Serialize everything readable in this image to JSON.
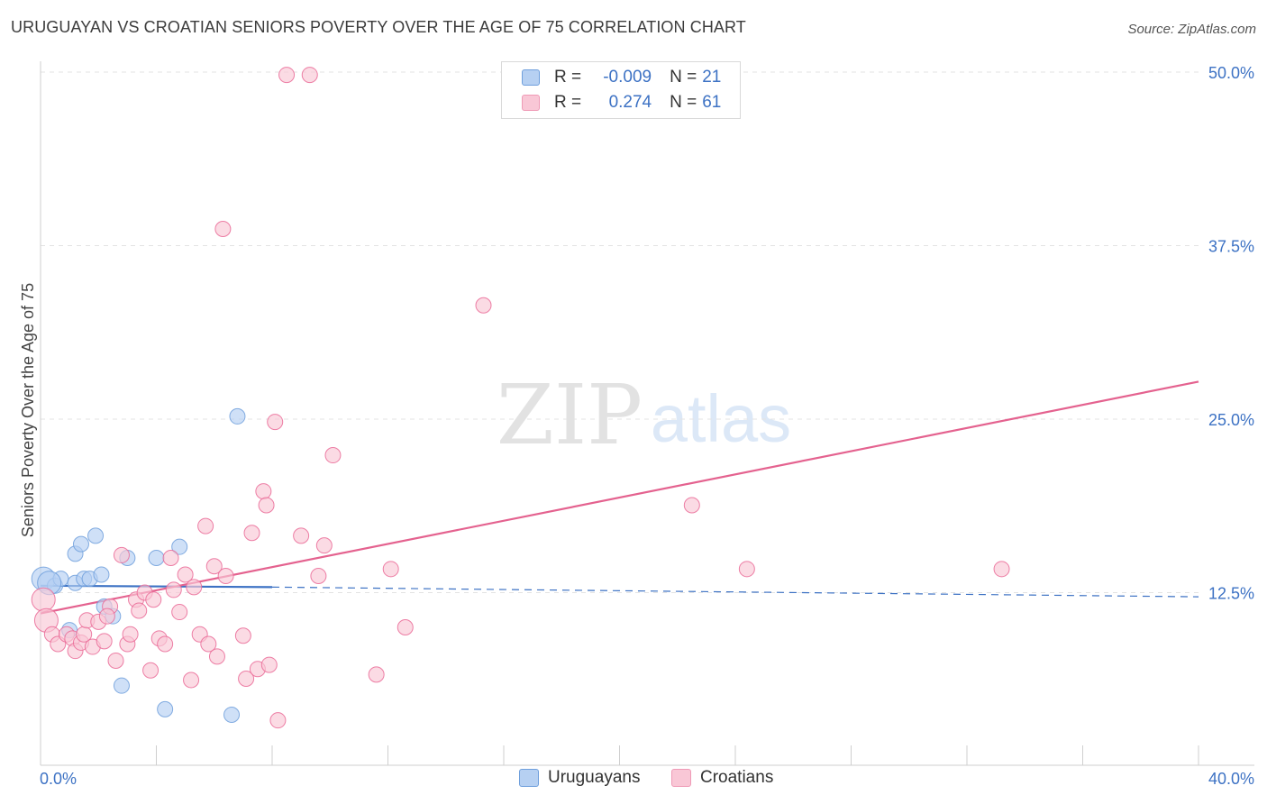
{
  "header": {
    "title": "URUGUAYAN VS CROATIAN SENIORS POVERTY OVER THE AGE OF 75 CORRELATION CHART",
    "source": "Source: ZipAtlas.com"
  },
  "watermark": {
    "zip": "ZIP",
    "atlas": "atlas"
  },
  "legend_box": {
    "rows": [
      {
        "r_label": "R =",
        "r_value": "-0.009",
        "n_label": "N =",
        "n_value": "21",
        "fill": "#b6d0f2",
        "stroke": "#6f9fdc"
      },
      {
        "r_label": "R =",
        "r_value": "0.274",
        "n_label": "N =",
        "n_value": "61",
        "fill": "#f9c7d6",
        "stroke": "#ef9ab6"
      }
    ]
  },
  "bottom_legend": {
    "uruguayans": "Uruguayans",
    "croatians": "Croatians"
  },
  "chart_data": {
    "type": "scatter",
    "title": "URUGUAYAN VS CROATIAN SENIORS POVERTY OVER THE AGE OF 75 CORRELATION CHART",
    "xlabel": "",
    "ylabel": "Seniors Poverty Over the Age of 75",
    "xlim": [
      0,
      40
    ],
    "ylim": [
      0,
      50
    ],
    "x_tick_labels": {
      "left": "0.0%",
      "right": "40.0%"
    },
    "y_ticks": [
      12.5,
      25.0,
      37.5,
      50.0
    ],
    "y_tick_labels": [
      "12.5%",
      "25.0%",
      "37.5%",
      "50.0%"
    ],
    "grid": true,
    "legend": "top-center",
    "series": [
      {
        "name": "Uruguayans",
        "color": "#6f9fdc",
        "fill": "#b6d0f2",
        "points": [
          [
            0.1,
            13.5
          ],
          [
            0.5,
            13.0
          ],
          [
            0.7,
            13.5
          ],
          [
            1.0,
            9.8
          ],
          [
            1.2,
            15.3
          ],
          [
            1.2,
            13.2
          ],
          [
            1.4,
            16.0
          ],
          [
            1.5,
            13.5
          ],
          [
            1.7,
            13.5
          ],
          [
            1.9,
            16.6
          ],
          [
            2.1,
            13.8
          ],
          [
            2.2,
            11.5
          ],
          [
            2.5,
            10.8
          ],
          [
            2.8,
            5.8
          ],
          [
            3.0,
            15.0
          ],
          [
            4.0,
            15.0
          ],
          [
            4.3,
            4.1
          ],
          [
            4.8,
            15.8
          ],
          [
            6.6,
            3.7
          ],
          [
            6.8,
            25.2
          ],
          [
            0.3,
            13.2
          ]
        ],
        "trend": {
          "x": [
            0,
            8
          ],
          "y": [
            13.0,
            12.9
          ],
          "dashed_to_x": 40,
          "dashed_y": 12.2
        }
      },
      {
        "name": "Croatians",
        "color": "#ea6a96",
        "fill": "#f9c7d6",
        "points": [
          [
            0.1,
            12.0
          ],
          [
            0.2,
            10.5
          ],
          [
            0.4,
            9.5
          ],
          [
            0.6,
            8.8
          ],
          [
            0.9,
            9.5
          ],
          [
            1.1,
            9.2
          ],
          [
            1.2,
            8.3
          ],
          [
            1.4,
            8.9
          ],
          [
            1.5,
            9.5
          ],
          [
            1.6,
            10.5
          ],
          [
            1.8,
            8.6
          ],
          [
            2.0,
            10.4
          ],
          [
            2.2,
            9.0
          ],
          [
            2.4,
            11.5
          ],
          [
            2.6,
            7.6
          ],
          [
            2.8,
            15.2
          ],
          [
            3.0,
            8.8
          ],
          [
            3.1,
            9.5
          ],
          [
            3.3,
            12.0
          ],
          [
            3.4,
            11.2
          ],
          [
            3.6,
            12.5
          ],
          [
            3.8,
            6.9
          ],
          [
            3.9,
            12.0
          ],
          [
            4.1,
            9.2
          ],
          [
            4.3,
            8.8
          ],
          [
            4.5,
            15.0
          ],
          [
            4.6,
            12.7
          ],
          [
            4.8,
            11.1
          ],
          [
            5.0,
            13.8
          ],
          [
            5.2,
            6.2
          ],
          [
            5.3,
            12.9
          ],
          [
            5.5,
            9.5
          ],
          [
            5.7,
            17.3
          ],
          [
            5.8,
            8.8
          ],
          [
            6.0,
            14.4
          ],
          [
            6.1,
            7.9
          ],
          [
            6.4,
            13.7
          ],
          [
            6.3,
            38.7
          ],
          [
            7.0,
            9.4
          ],
          [
            7.1,
            6.3
          ],
          [
            7.3,
            16.8
          ],
          [
            7.5,
            7.0
          ],
          [
            7.7,
            19.8
          ],
          [
            7.8,
            18.8
          ],
          [
            7.9,
            7.3
          ],
          [
            8.1,
            24.8
          ],
          [
            8.2,
            3.3
          ],
          [
            8.5,
            49.8
          ],
          [
            9.0,
            16.6
          ],
          [
            9.3,
            49.8
          ],
          [
            9.6,
            13.7
          ],
          [
            9.8,
            15.9
          ],
          [
            10.1,
            22.4
          ],
          [
            11.6,
            6.6
          ],
          [
            12.1,
            14.2
          ],
          [
            12.6,
            10.0
          ],
          [
            15.3,
            33.2
          ],
          [
            22.5,
            18.8
          ],
          [
            24.4,
            14.2
          ],
          [
            33.2,
            14.2
          ],
          [
            2.3,
            10.8
          ]
        ],
        "trend": {
          "x": [
            0,
            40
          ],
          "y": [
            11.0,
            27.7
          ]
        }
      }
    ]
  }
}
